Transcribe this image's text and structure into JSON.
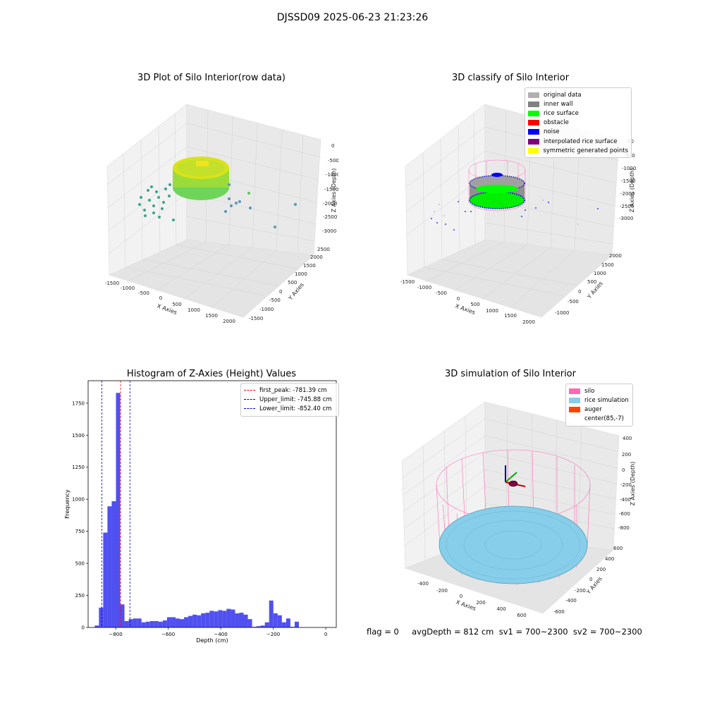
{
  "suptitle": "DJSSD09 2025-06-23 21:23:26",
  "footer": "flag = 0     avgDepth = 812 cm  sv1 = 700~2300  sv2 = 700~2300",
  "colors": {
    "original": "#b0b0b0",
    "inner_wall": "#808080",
    "rice_surface": "#00ff00",
    "obstacle": "#ff0000",
    "noise": "#0000ff",
    "interp": "#800080",
    "symmetric": "#ffff00",
    "silo": "#ff69b4",
    "rice_sim": "#87ceeb",
    "auger": "#ff4500",
    "hist": "#5050f0"
  },
  "chart_data": [
    {
      "type": "scatter",
      "subtype": "3d",
      "title": "3D Plot of Silo Interior(row data)",
      "xlabel": "X Axies",
      "ylabel": "Y Axies",
      "zlabel": "Z Axies (Depth)",
      "x_ticks": [
        "-1500",
        "-1000",
        "-500",
        "0",
        "500",
        "1000",
        "1500",
        "2000"
      ],
      "y_ticks": [
        "-1500",
        "-1000",
        "-500",
        "0",
        "500",
        "1000",
        "1500",
        "2000",
        "2500"
      ],
      "z_ticks": [
        "0",
        "-500",
        "-1000",
        "-1500",
        "-2000",
        "-2500",
        "-3000"
      ]
    },
    {
      "type": "scatter",
      "subtype": "3d",
      "title": "3D classify of Silo Interior",
      "xlabel": "X Axies",
      "ylabel": "Y Axies",
      "zlabel": "Z Axies (Depth)",
      "x_ticks": [
        "-1500",
        "-1000",
        "-500",
        "0",
        "500",
        "1000",
        "1500",
        "2000"
      ],
      "y_ticks": [
        "-1000",
        "-500",
        "0",
        "500",
        "1000",
        "1500",
        "2000"
      ],
      "z_ticks": [
        "-500",
        "-1000",
        "-1500",
        "-2000",
        "-2500",
        "-3000"
      ],
      "z_top_partial": "00",
      "legend": [
        "original data",
        "inner wall",
        "rice surface",
        "obstacle",
        "noise",
        "interpolated rice surface",
        "symmetric generated points"
      ]
    },
    {
      "type": "bar",
      "title": "Histogram of Z-Axies (Height) Values",
      "xlabel": "Depth (cm)",
      "ylabel": "Frequency",
      "xlim": [
        -905,
        40
      ],
      "ylim": [
        0,
        1925
      ],
      "x_ticks": [
        -800,
        -600,
        -400,
        -200,
        0
      ],
      "y_ticks": [
        0,
        250,
        500,
        750,
        1000,
        1250,
        1500,
        1750
      ],
      "bin_width": 16.2,
      "bin_start": -880,
      "values": [
        15,
        155,
        740,
        945,
        985,
        1830,
        180,
        50,
        65,
        70,
        70,
        40,
        45,
        50,
        50,
        45,
        55,
        80,
        80,
        70,
        65,
        80,
        90,
        100,
        95,
        110,
        115,
        130,
        125,
        135,
        130,
        145,
        140,
        110,
        115,
        100,
        65,
        5,
        10,
        15,
        40,
        210,
        110,
        95,
        40,
        70,
        5,
        45
      ],
      "lines": [
        {
          "label": "first_peak: -781.39 cm",
          "x": -781.39,
          "style": "red"
        },
        {
          "label": "Upper_limit: -745.88 cm",
          "x": -745.88,
          "style": "blue"
        },
        {
          "label": "Lower_limit: -852.40 cm",
          "x": -852.4,
          "style": "blue"
        }
      ]
    },
    {
      "type": "scatter",
      "subtype": "3d",
      "title": "3D simulation of Silo Interior",
      "xlabel": "X Axies",
      "ylabel": "Y Axies",
      "zlabel": "Z Axies (Depth)",
      "x_ticks": [
        "-400",
        "-200",
        "0",
        "200",
        "400",
        "600"
      ],
      "y_ticks": [
        "-600",
        "-400",
        "-200",
        "0",
        "200",
        "400",
        "600"
      ],
      "z_ticks": [
        "400",
        "200",
        "0",
        "-200",
        "-400",
        "-600",
        "-800"
      ],
      "legend": [
        "silo",
        "rice simulation",
        "auger",
        "center(85,-7)"
      ]
    }
  ]
}
